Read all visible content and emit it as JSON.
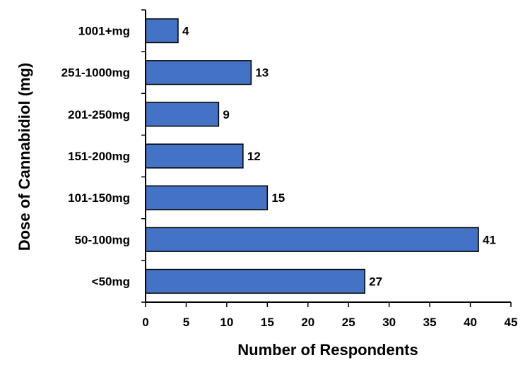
{
  "chart_data": {
    "type": "bar",
    "orientation": "horizontal",
    "title": "",
    "xlabel": "Number of Respondents",
    "ylabel": "Dose of Cannabidiol (mg)",
    "categories": [
      "<50mg",
      "50-100mg",
      "101-150mg",
      "151-200mg",
      "201-250mg",
      "251-1000mg",
      "1001+mg"
    ],
    "values": [
      27,
      41,
      15,
      12,
      9,
      13,
      4
    ],
    "xlim": [
      0,
      45
    ],
    "xticks": [
      0,
      5,
      10,
      15,
      20,
      25,
      30,
      35,
      40,
      45
    ],
    "grid": false,
    "legend": "none",
    "bar_color": "#4472C4",
    "bar_edge_color": "#000000",
    "data_labels": true
  }
}
